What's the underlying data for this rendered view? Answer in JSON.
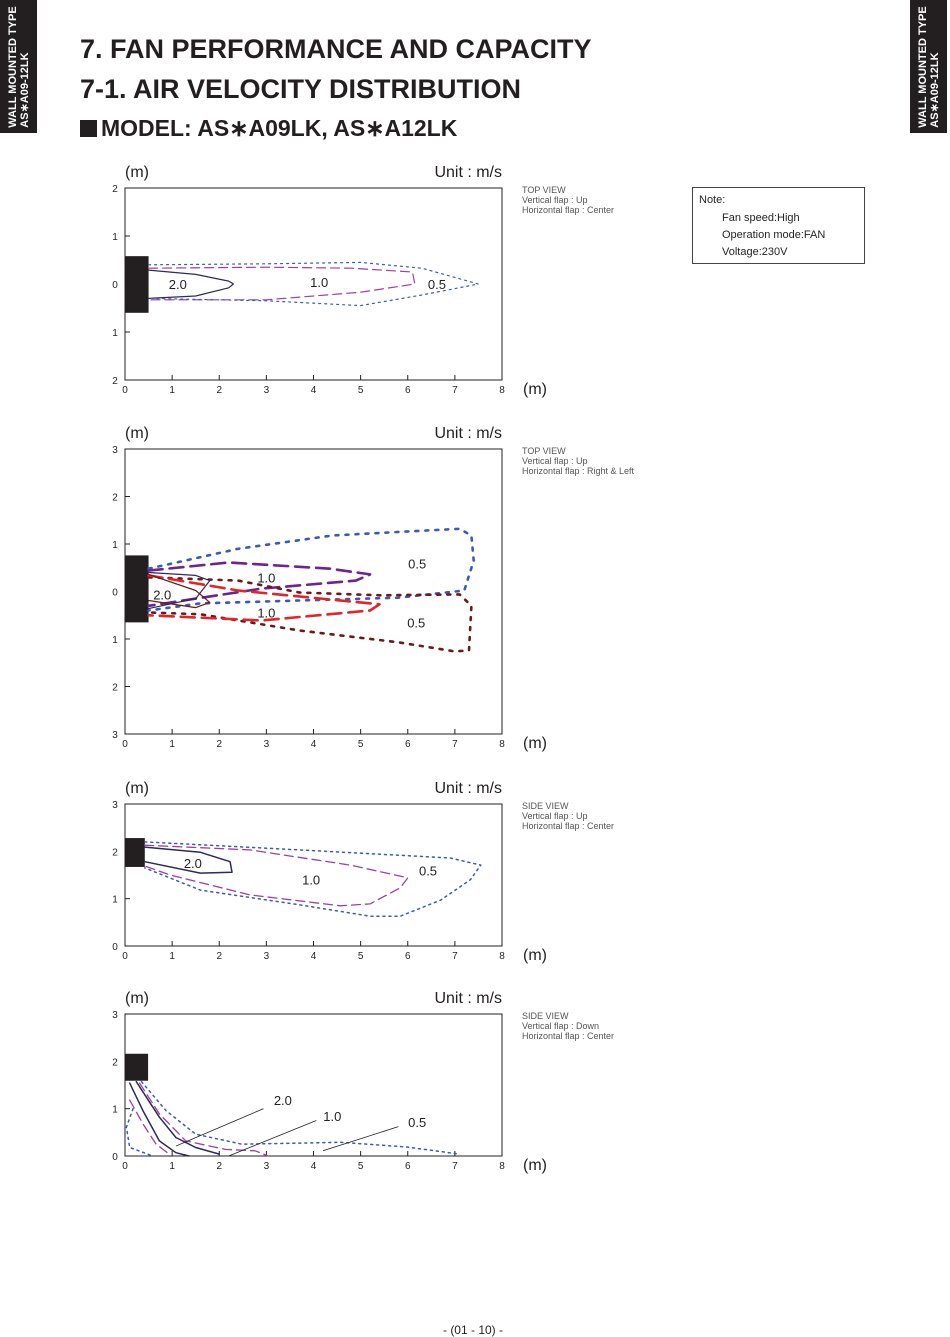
{
  "side_tab": {
    "line1": "WALL MOUNTED TYPE",
    "line2": "AS∗A09-12LK"
  },
  "heading": {
    "section": "7. FAN PERFORMANCE AND CAPACITY",
    "subsection": "7-1. AIR VELOCITY DISTRIBUTION",
    "model": "MODEL: AS∗A09LK, AS∗A12LK"
  },
  "note": {
    "title": "Note:",
    "items": [
      "Fan speed:High",
      "Operation mode:FAN",
      "Voltage:230V"
    ]
  },
  "footer": "- (01 - 10) -",
  "colors": {
    "navy": "#2b2a5a",
    "purple": "#9b3fa8",
    "violet": "#6a2590",
    "blue": "#3a5bb0",
    "red": "#e0262a",
    "darkred": "#6b1a1a",
    "unit": "#231f20"
  },
  "chart_data": [
    {
      "type": "line",
      "view": [
        "TOP VIEW",
        "Vertical flap : Up",
        "Horizontal flap : Center"
      ],
      "ylabel": "(m)",
      "xlabel": "(m)",
      "unit_label": "Unit : m/s",
      "xlim": [
        0,
        8
      ],
      "ylim": [
        -2,
        2
      ],
      "xticks": [
        "0",
        "1",
        "2",
        "3",
        "4",
        "5",
        "6",
        "7",
        "8"
      ],
      "yticks": [
        "2",
        "1",
        "0",
        "1",
        "2"
      ],
      "unit_box": {
        "x": [
          0,
          0.5
        ],
        "y": [
          -0.6,
          0.58
        ]
      },
      "series": [
        {
          "style": "solid",
          "color": "navy",
          "width": 1.2,
          "points": [
            [
              0.5,
              0.29
            ],
            [
              1.5,
              0.2
            ],
            [
              2.2,
              0.06
            ],
            [
              2.3,
              0
            ],
            [
              2.2,
              -0.08
            ],
            [
              1.5,
              -0.25
            ],
            [
              0.5,
              -0.3
            ]
          ]
        },
        {
          "style": "dashed",
          "color": "purple",
          "width": 1.2,
          "points": [
            [
              0.5,
              0.33
            ],
            [
              3,
              0.35
            ],
            [
              4.8,
              0.33
            ],
            [
              6.1,
              0.25
            ],
            [
              6.15,
              0
            ],
            [
              5,
              -0.17
            ],
            [
              3,
              -0.33
            ],
            [
              0.5,
              -0.33
            ]
          ]
        },
        {
          "style": "dotted",
          "color": "blue",
          "width": 1.2,
          "points": [
            [
              0.5,
              0.4
            ],
            [
              3,
              0.42
            ],
            [
              5,
              0.45
            ],
            [
              6.3,
              0.33
            ],
            [
              7.5,
              0
            ],
            [
              6.3,
              -0.23
            ],
            [
              5,
              -0.45
            ],
            [
              3,
              -0.35
            ],
            [
              0.5,
              -0.3
            ]
          ]
        }
      ],
      "labels": [
        {
          "text": "2.0",
          "at": [
            1.12,
            0
          ]
        },
        {
          "text": "1.0",
          "at": [
            4.12,
            0.04
          ]
        },
        {
          "text": "0.5",
          "at": [
            6.62,
            0
          ]
        }
      ]
    },
    {
      "type": "line",
      "view": [
        "TOP VIEW",
        "Vertical flap : Up",
        "Horizontal flap : Right & Left"
      ],
      "ylabel": "(m)",
      "xlabel": "(m)",
      "unit_label": "Unit : m/s",
      "xlim": [
        0,
        8
      ],
      "ylim": [
        -3,
        3
      ],
      "xticks": [
        "0",
        "1",
        "2",
        "3",
        "4",
        "5",
        "6",
        "7",
        "8"
      ],
      "yticks": [
        "3",
        "2",
        "1",
        "0",
        "1",
        "2",
        "3"
      ],
      "unit_box": {
        "x": [
          0,
          0.5
        ],
        "y": [
          -0.65,
          0.76
        ]
      },
      "series": [
        {
          "style": "dotted",
          "color": "blue",
          "width": 2.6,
          "points": [
            [
              0.5,
              0.48
            ],
            [
              2.4,
              0.9
            ],
            [
              4.4,
              1.18
            ],
            [
              6.3,
              1.28
            ],
            [
              7.1,
              1.32
            ],
            [
              7.35,
              1.18
            ],
            [
              7.4,
              0.65
            ],
            [
              7.2,
              0.02
            ],
            [
              5.8,
              -0.13
            ],
            [
              3.7,
              -0.19
            ],
            [
              1.6,
              -0.25
            ],
            [
              0.5,
              -0.4
            ]
          ]
        },
        {
          "style": "dashed",
          "color": "violet",
          "width": 2.6,
          "points": [
            [
              0.5,
              0.44
            ],
            [
              2.2,
              0.61
            ],
            [
              4.35,
              0.48
            ],
            [
              5.2,
              0.36
            ],
            [
              4.9,
              0.23
            ],
            [
              2.9,
              0.06
            ],
            [
              0.5,
              -0.3
            ]
          ]
        },
        {
          "style": "dotted",
          "color": "darkred",
          "width": 2.6,
          "points": [
            [
              0.5,
              0.3
            ],
            [
              2.4,
              0.23
            ],
            [
              3.7,
              -0.02
            ],
            [
              5.4,
              -0.08
            ],
            [
              7.1,
              -0.06
            ],
            [
              7.35,
              -0.3
            ],
            [
              7.3,
              -1.24
            ],
            [
              7,
              -1.26
            ],
            [
              5.8,
              -1.07
            ],
            [
              3.7,
              -0.82
            ],
            [
              1.6,
              -0.48
            ],
            [
              0.5,
              -0.44
            ]
          ]
        },
        {
          "style": "dashed",
          "color": "red",
          "width": 2.6,
          "points": [
            [
              0.5,
              0.34
            ],
            [
              2.4,
              0.02
            ],
            [
              5.4,
              -0.27
            ],
            [
              5.2,
              -0.4
            ],
            [
              2.9,
              -0.61
            ],
            [
              0.5,
              -0.5
            ]
          ]
        },
        {
          "style": "solid",
          "color": "navy",
          "width": 1.2,
          "points": [
            [
              0.5,
              0.4
            ],
            [
              1.5,
              0.34
            ],
            [
              1.8,
              0.23
            ],
            [
              1.5,
              -0.15
            ],
            [
              0.5,
              -0.36
            ]
          ]
        },
        {
          "style": "solid",
          "color": "darkred",
          "width": 1.2,
          "points": [
            [
              0.5,
              0.36
            ],
            [
              1.5,
              0.02
            ],
            [
              1.8,
              -0.23
            ],
            [
              1.5,
              -0.34
            ],
            [
              0.5,
              -0.19
            ]
          ]
        }
      ],
      "labels": [
        {
          "text": "2.0",
          "at": [
            0.79,
            -0.06
          ]
        },
        {
          "text": "1.0",
          "at": [
            3.0,
            0.29
          ]
        },
        {
          "text": "1.0",
          "at": [
            3.0,
            -0.44
          ]
        },
        {
          "text": "0.5",
          "at": [
            6.2,
            0.59
          ]
        },
        {
          "text": "0.5",
          "at": [
            6.18,
            -0.65
          ]
        }
      ]
    },
    {
      "type": "line",
      "view": [
        "SIDE VIEW",
        "Vertical flap : Up",
        "Horizontal flap : Center"
      ],
      "ylabel": "(m)",
      "xlabel": "(m)",
      "unit_label": "Unit : m/s",
      "xlim": [
        0,
        8
      ],
      "ylim": [
        0,
        3
      ],
      "xticks": [
        "0",
        "1",
        "2",
        "3",
        "4",
        "5",
        "6",
        "7",
        "8"
      ],
      "yticks": [
        "3",
        "2",
        "1",
        "0"
      ],
      "unit_box": {
        "x": [
          0,
          0.42
        ],
        "y": [
          1.67,
          2.28
        ]
      },
      "series": [
        {
          "style": "solid",
          "color": "navy",
          "width": 1.5,
          "points": [
            [
              0.42,
              2.09
            ],
            [
              1.6,
              1.98
            ],
            [
              2.23,
              1.78
            ],
            [
              2.27,
              1.56
            ],
            [
              1.6,
              1.54
            ],
            [
              0.42,
              1.78
            ]
          ]
        },
        {
          "style": "dashed",
          "color": "purple",
          "width": 1.3,
          "points": [
            [
              0.42,
              2.13
            ],
            [
              2.65,
              2.03
            ],
            [
              4.78,
              1.71
            ],
            [
              6.0,
              1.44
            ],
            [
              5.84,
              1.23
            ],
            [
              5.2,
              0.89
            ],
            [
              4.57,
              0.85
            ],
            [
              2.65,
              1.08
            ],
            [
              0.96,
              1.5
            ],
            [
              0.42,
              1.69
            ]
          ]
        },
        {
          "style": "dotted",
          "color": "blue",
          "width": 1.5,
          "points": [
            [
              0.42,
              2.2
            ],
            [
              3.7,
              2.03
            ],
            [
              6.9,
              1.86
            ],
            [
              7.55,
              1.71
            ],
            [
              7.33,
              1.4
            ],
            [
              6.7,
              0.97
            ],
            [
              5.84,
              0.63
            ],
            [
              5.2,
              0.63
            ],
            [
              3.7,
              0.87
            ],
            [
              1.6,
              1.18
            ],
            [
              0.42,
              1.65
            ]
          ]
        }
      ],
      "labels": [
        {
          "text": "2.0",
          "at": [
            1.44,
            1.75
          ]
        },
        {
          "text": "1.0",
          "at": [
            3.95,
            1.4
          ]
        },
        {
          "text": "0.5",
          "at": [
            6.43,
            1.6
          ]
        }
      ]
    },
    {
      "type": "line",
      "view": [
        "SIDE VIEW",
        "Vertical flap : Down",
        "Horizontal flap : Center"
      ],
      "ylabel": "(m)",
      "xlabel": "(m)",
      "unit_label": "Unit : m/s",
      "xlim": [
        0,
        8
      ],
      "ylim": [
        0,
        3
      ],
      "xticks": [
        "0",
        "1",
        "2",
        "3",
        "4",
        "5",
        "6",
        "7",
        "8"
      ],
      "yticks": [
        "3",
        "2",
        "1",
        "0"
      ],
      "unit_box": {
        "x": [
          0,
          0.49
        ],
        "y": [
          1.59,
          2.16
        ]
      },
      "series": [
        {
          "style": "solid",
          "color": "navy",
          "width": 1.5,
          "points": [
            [
              0.1,
              1.54
            ],
            [
              0.38,
              0.96
            ],
            [
              0.73,
              0.32
            ],
            [
              1.08,
              0.07
            ],
            [
              1.36,
              0
            ]
          ]
        },
        {
          "style": "solid",
          "color": "navy",
          "width": 1.5,
          "points": [
            [
              0.24,
              1.57
            ],
            [
              0.73,
              0.82
            ],
            [
              1.08,
              0.39
            ],
            [
              1.5,
              0.18
            ],
            [
              2.0,
              0.04
            ]
          ]
        },
        {
          "style": "dashed",
          "color": "purple",
          "width": 1.3,
          "points": [
            [
              0.1,
              1.18
            ],
            [
              0.38,
              0.68
            ],
            [
              0.66,
              0.25
            ],
            [
              0.94,
              0.04
            ]
          ]
        },
        {
          "style": "dashed",
          "color": "purple",
          "width": 1.3,
          "points": [
            [
              0.31,
              1.54
            ],
            [
              0.73,
              0.89
            ],
            [
              1.29,
              0.32
            ],
            [
              2.13,
              0.14
            ],
            [
              2.76,
              0.11
            ],
            [
              3.04,
              0
            ]
          ]
        },
        {
          "style": "dotted",
          "color": "blue",
          "width": 1.5,
          "points": [
            [
              0.17,
              1.0
            ],
            [
              0.03,
              0.61
            ],
            [
              0.1,
              0.18
            ],
            [
              0.59,
              0
            ]
          ]
        },
        {
          "style": "dotted",
          "color": "blue",
          "width": 1.5,
          "points": [
            [
              0.35,
              1.57
            ],
            [
              0.87,
              0.96
            ],
            [
              1.5,
              0.46
            ],
            [
              2.48,
              0.25
            ],
            [
              4.58,
              0.29
            ],
            [
              5.98,
              0.19
            ],
            [
              7.1,
              0.04
            ]
          ]
        }
      ],
      "leaders": [
        [
          [
            2.94,
            1.0
          ],
          [
            1.08,
            0.21
          ]
        ],
        [
          [
            4.06,
            0.75
          ],
          [
            2.2,
            0
          ]
        ],
        [
          [
            5.8,
            0.62
          ],
          [
            4.2,
            0.11
          ]
        ]
      ],
      "labels": [
        {
          "text": "2.0",
          "at": [
            3.35,
            1.18
          ]
        },
        {
          "text": "1.0",
          "at": [
            4.4,
            0.85
          ]
        },
        {
          "text": "0.5",
          "at": [
            6.2,
            0.72
          ]
        }
      ]
    }
  ]
}
